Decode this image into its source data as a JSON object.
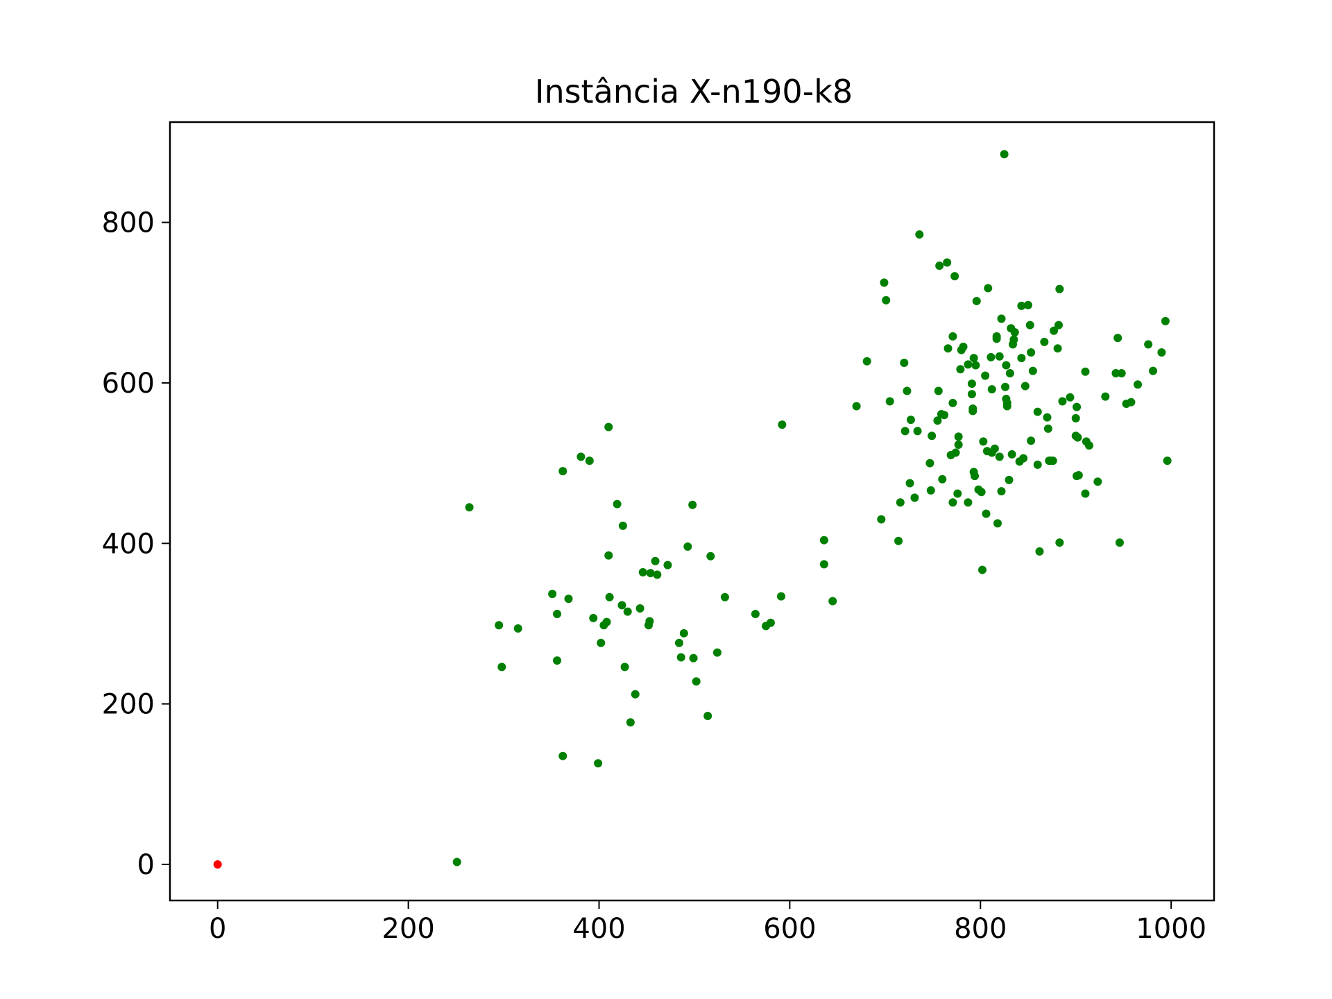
{
  "chart_data": {
    "type": "scatter",
    "title": "Instância X-n190-k8",
    "xlabel": "",
    "ylabel": "",
    "xlim": [
      -50,
      1045
    ],
    "ylim": [
      -45,
      925
    ],
    "xticks": [
      0,
      200,
      400,
      600,
      800,
      1000
    ],
    "yticks": [
      0,
      200,
      400,
      600,
      800
    ],
    "grid": false,
    "legend": "none",
    "series": [
      {
        "role": "depot",
        "color": "#ff0000",
        "points": [
          [
            0,
            0
          ]
        ]
      },
      {
        "role": "customers",
        "color": "#008000",
        "points": [
          [
            251,
            3
          ],
          [
            264,
            445
          ],
          [
            295,
            298
          ],
          [
            298,
            246
          ],
          [
            315,
            294
          ],
          [
            351,
            337
          ],
          [
            356,
            312
          ],
          [
            356,
            254
          ],
          [
            362,
            135
          ],
          [
            362,
            490
          ],
          [
            368,
            331
          ],
          [
            381,
            508
          ],
          [
            390,
            503
          ],
          [
            394,
            307
          ],
          [
            399,
            126
          ],
          [
            402,
            276
          ],
          [
            405,
            298
          ],
          [
            408,
            302
          ],
          [
            410,
            545
          ],
          [
            410,
            385
          ],
          [
            411,
            333
          ],
          [
            419,
            449
          ],
          [
            424,
            323
          ],
          [
            425,
            422
          ],
          [
            427,
            246
          ],
          [
            430,
            315
          ],
          [
            433,
            177
          ],
          [
            438,
            212
          ],
          [
            443,
            319
          ],
          [
            446,
            364
          ],
          [
            452,
            298
          ],
          [
            453,
            303
          ],
          [
            454,
            363
          ],
          [
            459,
            378
          ],
          [
            461,
            361
          ],
          [
            472,
            373
          ],
          [
            484,
            276
          ],
          [
            486,
            258
          ],
          [
            489,
            288
          ],
          [
            493,
            396
          ],
          [
            498,
            448
          ],
          [
            499,
            257
          ],
          [
            502,
            228
          ],
          [
            514,
            185
          ],
          [
            517,
            384
          ],
          [
            524,
            264
          ],
          [
            532,
            333
          ],
          [
            564,
            312
          ],
          [
            575,
            297
          ],
          [
            580,
            301
          ],
          [
            591,
            334
          ],
          [
            592,
            548
          ],
          [
            636,
            404
          ],
          [
            636,
            374
          ],
          [
            645,
            328
          ],
          [
            670,
            571
          ],
          [
            681,
            627
          ],
          [
            696,
            430
          ],
          [
            699,
            725
          ],
          [
            701,
            703
          ],
          [
            705,
            577
          ],
          [
            714,
            403
          ],
          [
            716,
            451
          ],
          [
            720,
            625
          ],
          [
            721,
            540
          ],
          [
            723,
            590
          ],
          [
            726,
            475
          ],
          [
            727,
            554
          ],
          [
            731,
            457
          ],
          [
            734,
            540
          ],
          [
            736,
            785
          ],
          [
            747,
            500
          ],
          [
            748,
            466
          ],
          [
            749,
            534
          ],
          [
            755,
            553
          ],
          [
            756,
            590
          ],
          [
            757,
            746
          ],
          [
            759,
            561
          ],
          [
            760,
            480
          ],
          [
            762,
            560
          ],
          [
            765,
            750
          ],
          [
            766,
            643
          ],
          [
            769,
            510
          ],
          [
            771,
            658
          ],
          [
            771,
            575
          ],
          [
            771,
            451
          ],
          [
            773,
            733
          ],
          [
            774,
            513
          ],
          [
            776,
            462
          ],
          [
            777,
            523
          ],
          [
            777,
            533
          ],
          [
            779,
            617
          ],
          [
            780,
            641
          ],
          [
            782,
            645
          ],
          [
            787,
            451
          ],
          [
            787,
            623
          ],
          [
            791,
            599
          ],
          [
            791,
            586
          ],
          [
            792,
            568
          ],
          [
            792,
            565
          ],
          [
            793,
            631
          ],
          [
            793,
            489
          ],
          [
            794,
            484
          ],
          [
            795,
            622
          ],
          [
            796,
            702
          ],
          [
            798,
            467
          ],
          [
            801,
            464
          ],
          [
            802,
            367
          ],
          [
            803,
            527
          ],
          [
            805,
            609
          ],
          [
            806,
            437
          ],
          [
            807,
            515
          ],
          [
            808,
            718
          ],
          [
            811,
            632
          ],
          [
            812,
            592
          ],
          [
            812,
            513
          ],
          [
            815,
            518
          ],
          [
            817,
            658
          ],
          [
            817,
            655
          ],
          [
            818,
            425
          ],
          [
            820,
            633
          ],
          [
            820,
            508
          ],
          [
            822,
            680
          ],
          [
            822,
            465
          ],
          [
            825,
            885
          ],
          [
            826,
            595
          ],
          [
            827,
            622
          ],
          [
            827,
            580
          ],
          [
            828,
            575
          ],
          [
            828,
            571
          ],
          [
            830,
            479
          ],
          [
            831,
            612
          ],
          [
            832,
            668
          ],
          [
            833,
            511
          ],
          [
            834,
            648
          ],
          [
            835,
            654
          ],
          [
            836,
            663
          ],
          [
            841,
            502
          ],
          [
            843,
            696
          ],
          [
            843,
            631
          ],
          [
            845,
            506
          ],
          [
            847,
            596
          ],
          [
            850,
            697
          ],
          [
            852,
            672
          ],
          [
            853,
            638
          ],
          [
            853,
            528
          ],
          [
            855,
            615
          ],
          [
            860,
            564
          ],
          [
            860,
            498
          ],
          [
            862,
            390
          ],
          [
            867,
            651
          ],
          [
            870,
            557
          ],
          [
            871,
            543
          ],
          [
            872,
            503
          ],
          [
            874,
            503
          ],
          [
            876,
            503
          ],
          [
            877,
            665
          ],
          [
            881,
            643
          ],
          [
            882,
            672
          ],
          [
            883,
            717
          ],
          [
            883,
            401
          ],
          [
            886,
            577
          ],
          [
            894,
            582
          ],
          [
            900,
            534
          ],
          [
            900,
            556
          ],
          [
            901,
            570
          ],
          [
            901,
            484
          ],
          [
            902,
            532
          ],
          [
            903,
            485
          ],
          [
            910,
            614
          ],
          [
            910,
            462
          ],
          [
            911,
            527
          ],
          [
            914,
            522
          ],
          [
            923,
            477
          ],
          [
            931,
            583
          ],
          [
            942,
            612
          ],
          [
            944,
            656
          ],
          [
            946,
            401
          ],
          [
            948,
            612
          ],
          [
            953,
            574
          ],
          [
            958,
            576
          ],
          [
            965,
            598
          ],
          [
            976,
            648
          ],
          [
            981,
            615
          ],
          [
            990,
            638
          ],
          [
            994,
            677
          ],
          [
            996,
            503
          ]
        ]
      }
    ]
  }
}
